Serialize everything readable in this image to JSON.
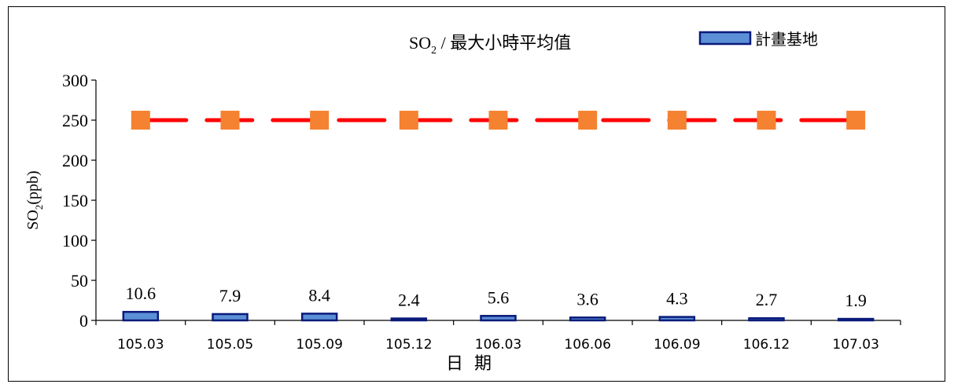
{
  "chart_data": {
    "type": "bar",
    "title_main": "SO",
    "title_sub": "2",
    "title_rest": " / 最大小時平均值",
    "legend_label": "計畫基地",
    "ylabel_main": "SO",
    "ylabel_sub": "2",
    "ylabel_rest": "(ppb)",
    "xlabel": "日  期",
    "ylim": [
      0,
      300
    ],
    "yticks": [
      "0",
      "50",
      "100",
      "150",
      "200",
      "250",
      "300"
    ],
    "categories": [
      "105.03",
      "105.05",
      "105.09",
      "105.12",
      "106.03",
      "106.06",
      "106.09",
      "106.12",
      "107.03"
    ],
    "series": [
      {
        "name": "計畫基地",
        "values": [
          10.6,
          7.9,
          8.4,
          2.4,
          5.6,
          3.6,
          4.3,
          2.7,
          1.9
        ],
        "labels": [
          "10.6",
          "7.9",
          "8.4",
          "2.4",
          "5.6",
          "3.6",
          "4.3",
          "2.7",
          "1.9"
        ],
        "color": "#5b8fd6",
        "border": "#0a1a7a"
      }
    ],
    "reference_line": {
      "value": 250,
      "line_color": "#ff0000",
      "marker_color": "#f58231"
    },
    "grid": false,
    "legend_position": "top-right"
  }
}
